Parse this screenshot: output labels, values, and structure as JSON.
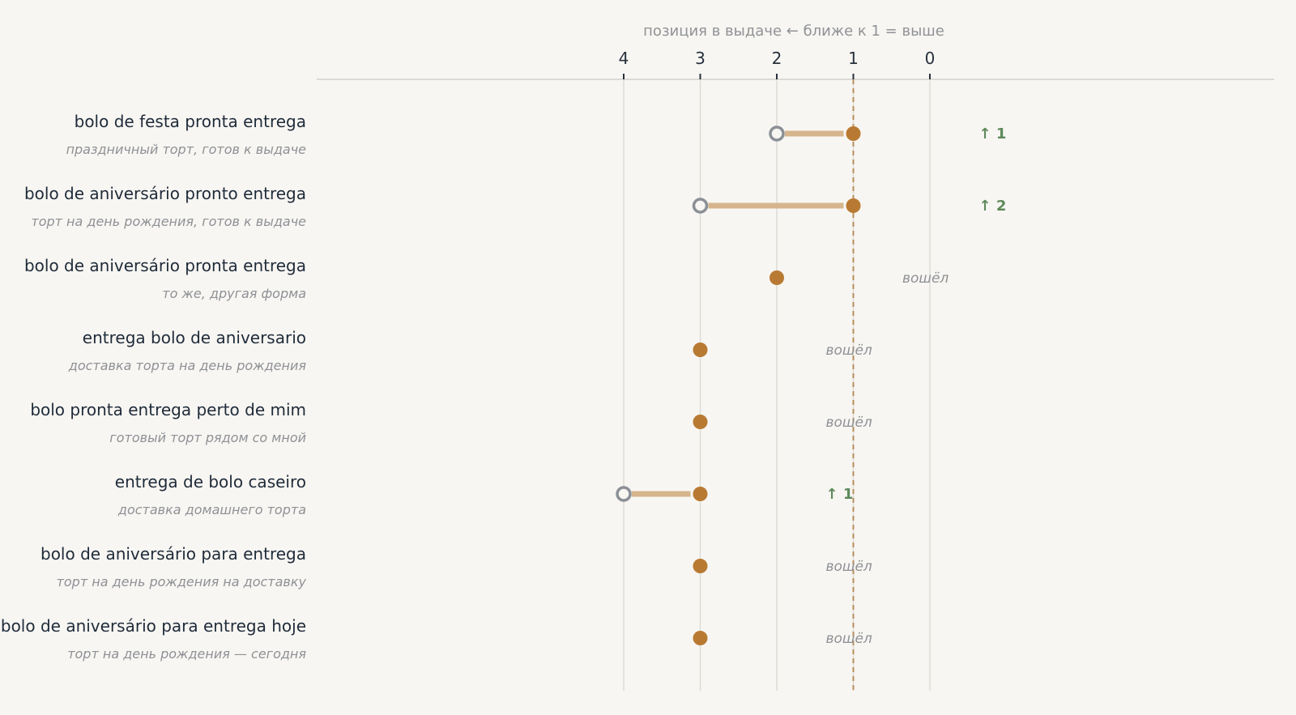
{
  "colors": {
    "background": "#f8f6f2",
    "current": "#b87a33",
    "connector": "#d6b58c",
    "previous_stroke": "#8b9096",
    "reference": "#b88f5e",
    "grid": "#dddbd6",
    "up": "#5e8a5c",
    "muted": "#8e9196"
  },
  "chart_data": {
    "type": "dumbbell",
    "axis_title": "позиция в выдаче ← ближе к 1 = выше",
    "x_ticks": [
      4,
      3,
      2,
      1,
      0
    ],
    "xlim": [
      4,
      0
    ],
    "reversed_axis": true,
    "reference_line": 1,
    "grid": true,
    "rows": [
      {
        "label": "bolo de festa pronta entrega",
        "subtitle": "праздничный торт, готов к выдаче",
        "previous": 2,
        "current": 1,
        "annotation": "↑ 1",
        "annotation_type": "up"
      },
      {
        "label": "bolo de aniversário pronto entrega",
        "subtitle": "торт на день рождения, готов к выдаче",
        "previous": 3,
        "current": 1,
        "annotation": "↑ 2",
        "annotation_type": "up"
      },
      {
        "label": "bolo de aniversário pronta entrega",
        "subtitle": "то же, другая форма",
        "previous": null,
        "current": 2,
        "annotation": "вошёл",
        "annotation_type": "new"
      },
      {
        "label": "entrega bolo de aniversario",
        "subtitle": "доставка торта на день рождения",
        "previous": null,
        "current": 3,
        "annotation": "вошёл",
        "annotation_type": "new"
      },
      {
        "label": "bolo pronta entrega perto de mim",
        "subtitle": "готовый торт рядом со мной",
        "previous": null,
        "current": 3,
        "annotation": "вошёл",
        "annotation_type": "new"
      },
      {
        "label": "entrega de bolo caseiro",
        "subtitle": "доставка домашнего торта",
        "previous": 4,
        "current": 3,
        "annotation": "↑ 1",
        "annotation_type": "up"
      },
      {
        "label": "bolo de aniversário para entrega",
        "subtitle": "торт на день рождения на доставку",
        "previous": null,
        "current": 3,
        "annotation": "вошёл",
        "annotation_type": "new"
      },
      {
        "label": "bolo de aniversário para entrega hoje",
        "subtitle": "торт на день рождения — сегодня",
        "previous": null,
        "current": 3,
        "annotation": "вошёл",
        "annotation_type": "new"
      }
    ]
  }
}
